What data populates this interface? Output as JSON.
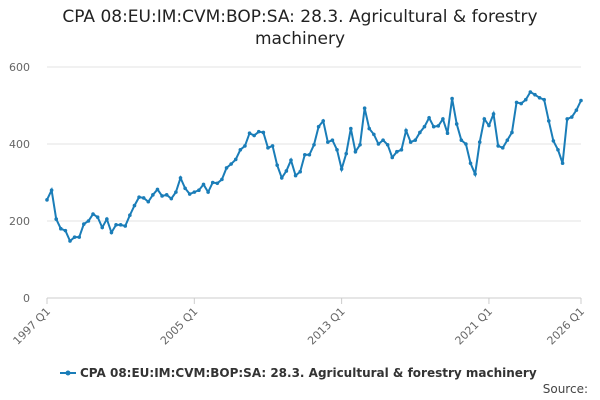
{
  "chart_data": {
    "type": "line",
    "title": "CPA 08:EU:IM:CVM:BOP:SA: 28.3. Agricultural & forestry machinery",
    "source": "Source:",
    "categories": [
      "1997 Q1",
      null,
      null,
      null,
      null,
      null,
      null,
      null,
      null,
      null,
      null,
      null,
      null,
      null,
      null,
      null,
      null,
      null,
      null,
      null,
      null,
      null,
      null,
      null,
      null,
      null,
      null,
      null,
      null,
      null,
      null,
      null,
      "2005 Q1",
      null,
      null,
      null,
      null,
      null,
      null,
      null,
      null,
      null,
      null,
      null,
      null,
      null,
      null,
      null,
      null,
      null,
      null,
      null,
      null,
      null,
      null,
      null,
      null,
      null,
      null,
      null,
      null,
      null,
      null,
      null,
      "2013 Q1",
      null,
      null,
      null,
      null,
      null,
      null,
      null,
      null,
      null,
      null,
      null,
      null,
      null,
      null,
      null,
      null,
      null,
      null,
      null,
      null,
      null,
      null,
      null,
      null,
      null,
      null,
      null,
      null,
      null,
      null,
      null,
      "2021 Q1",
      null,
      null,
      null,
      null,
      null,
      null,
      null,
      null,
      null,
      null,
      null,
      null,
      null,
      null,
      null,
      null,
      null,
      null,
      null,
      "2026 Q1"
    ],
    "series": [
      {
        "name": "CPA 08:EU:IM:CVM:BOP:SA: 28.3. Agricultural & forestry machinery",
        "color": "#1a7db8",
        "values": [
          255,
          280,
          205,
          180,
          175,
          148,
          158,
          158,
          192,
          200,
          218,
          210,
          183,
          205,
          170,
          190,
          190,
          187,
          215,
          240,
          262,
          260,
          250,
          268,
          282,
          265,
          268,
          258,
          275,
          312,
          285,
          270,
          275,
          280,
          295,
          275,
          300,
          298,
          308,
          338,
          348,
          360,
          385,
          395,
          428,
          422,
          432,
          430,
          390,
          395,
          345,
          312,
          330,
          358,
          318,
          328,
          372,
          372,
          398,
          445,
          460,
          405,
          410,
          385,
          335,
          375,
          440,
          380,
          398,
          493,
          440,
          425,
          400,
          410,
          398,
          365,
          380,
          385,
          435,
          405,
          410,
          430,
          445,
          468,
          445,
          447,
          465,
          428,
          518,
          452,
          410,
          400,
          350,
          322,
          405,
          465,
          448,
          478,
          395,
          390,
          410,
          430,
          508,
          505,
          515,
          535,
          528,
          520,
          515,
          460,
          408,
          385,
          350,
          465,
          470,
          488,
          513
        ]
      }
    ],
    "ylim": [
      0,
      650
    ],
    "yticks": [
      0,
      200,
      400,
      600
    ],
    "grid": true,
    "legend": "bottom"
  }
}
